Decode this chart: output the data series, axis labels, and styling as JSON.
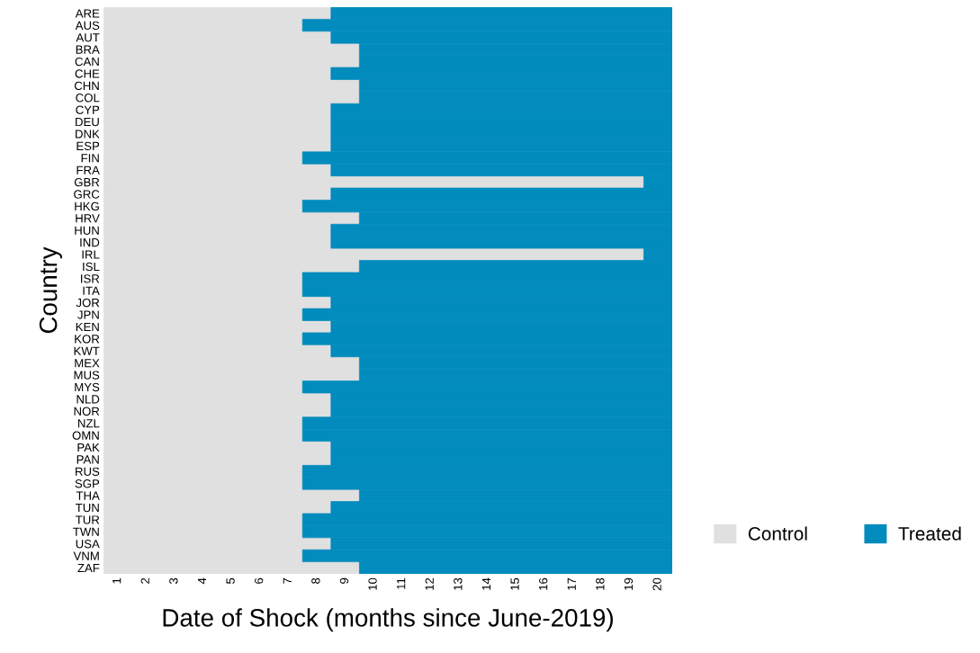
{
  "chart_data": {
    "type": "bar",
    "orientation": "horizontal",
    "stacked": true,
    "xlabel": "Date of Shock (months since June-2019)",
    "ylabel": "Country",
    "categories": [
      "ARE",
      "AUS",
      "AUT",
      "BRA",
      "CAN",
      "CHE",
      "CHN",
      "COL",
      "CYP",
      "DEU",
      "DNK",
      "ESP",
      "FIN",
      "FRA",
      "GBR",
      "GRC",
      "HKG",
      "HRV",
      "HUN",
      "IND",
      "IRL",
      "ISL",
      "ISR",
      "ITA",
      "JOR",
      "JPN",
      "KEN",
      "KOR",
      "KWT",
      "MEX",
      "MUS",
      "MYS",
      "NLD",
      "NOR",
      "NZL",
      "OMN",
      "PAK",
      "PAN",
      "RUS",
      "SGP",
      "THA",
      "TUN",
      "TUR",
      "TWN",
      "USA",
      "VNM",
      "ZAF"
    ],
    "xlim": [
      0,
      20
    ],
    "xticks": [
      {
        "value": 0.5,
        "label": "1"
      },
      {
        "value": 1.5,
        "label": "2"
      },
      {
        "value": 2.5,
        "label": "3"
      },
      {
        "value": 3.5,
        "label": "4"
      },
      {
        "value": 4.5,
        "label": "5"
      },
      {
        "value": 5.5,
        "label": "6"
      },
      {
        "value": 6.5,
        "label": "7"
      },
      {
        "value": 7.5,
        "label": "8"
      },
      {
        "value": 8.5,
        "label": "9"
      },
      {
        "value": 9.5,
        "label": "10"
      },
      {
        "value": 10.5,
        "label": "11"
      },
      {
        "value": 11.5,
        "label": "12"
      },
      {
        "value": 12.5,
        "label": "13"
      },
      {
        "value": 13.5,
        "label": "14"
      },
      {
        "value": 14.5,
        "label": "15"
      },
      {
        "value": 15.5,
        "label": "16"
      },
      {
        "value": 16.5,
        "label": "17"
      },
      {
        "value": 17.5,
        "label": "18"
      },
      {
        "value": 18.5,
        "label": "19"
      },
      {
        "value": 19.5,
        "label": "20"
      }
    ],
    "legend": "bottom right",
    "series": [
      {
        "name": "Control",
        "color": "#e0e0e0",
        "values": [
          8,
          7,
          8,
          9,
          9,
          8,
          9,
          9,
          8,
          8,
          8,
          8,
          7,
          8,
          19,
          8,
          7,
          9,
          8,
          8,
          19,
          9,
          7,
          7,
          8,
          7,
          8,
          7,
          8,
          9,
          9,
          7,
          8,
          8,
          7,
          7,
          8,
          8,
          7,
          7,
          9,
          8,
          7,
          7,
          8,
          7,
          9
        ]
      },
      {
        "name": "Treated",
        "color": "#028bbd",
        "values": [
          12,
          13,
          12,
          11,
          11,
          12,
          11,
          11,
          12,
          12,
          12,
          12,
          13,
          12,
          1,
          12,
          13,
          11,
          12,
          12,
          1,
          11,
          13,
          13,
          12,
          13,
          12,
          13,
          12,
          11,
          11,
          13,
          12,
          12,
          13,
          13,
          12,
          12,
          13,
          13,
          11,
          12,
          13,
          13,
          12,
          13,
          11
        ]
      }
    ]
  }
}
